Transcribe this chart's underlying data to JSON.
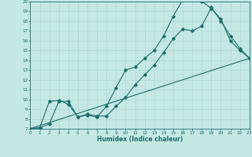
{
  "xlabel": "Humidex (Indice chaleur)",
  "xlim": [
    0,
    23
  ],
  "ylim": [
    7,
    20
  ],
  "bg_color": "#c5e8e5",
  "grid_color": "#afd8d4",
  "line_color": "#1a6e68",
  "line1_x": [
    0,
    1,
    2,
    3,
    4,
    5,
    6,
    7,
    8,
    9,
    10,
    11,
    12,
    13,
    14,
    15,
    16,
    17,
    18,
    19,
    20,
    21,
    22,
    23
  ],
  "line1_y": [
    7.0,
    7.1,
    7.5,
    9.8,
    9.8,
    8.2,
    8.4,
    8.2,
    9.3,
    11.2,
    13.0,
    13.3,
    14.2,
    15.0,
    16.5,
    18.5,
    20.2,
    20.2,
    20.0,
    19.3,
    18.2,
    16.0,
    15.0,
    14.2
  ],
  "line2_x": [
    0,
    1,
    2,
    3,
    4,
    5,
    6,
    7,
    8,
    9,
    10,
    11,
    12,
    13,
    14,
    15,
    16,
    17,
    18,
    19,
    20,
    21,
    22,
    23
  ],
  "line2_y": [
    7.0,
    7.1,
    9.8,
    9.9,
    9.5,
    8.2,
    8.5,
    8.3,
    8.3,
    9.3,
    10.2,
    11.5,
    12.5,
    13.5,
    14.8,
    16.2,
    17.2,
    17.0,
    17.5,
    19.4,
    18.0,
    16.5,
    15.2,
    14.2
  ],
  "line3_x": [
    0,
    23
  ],
  "line3_y": [
    7.0,
    14.2
  ]
}
